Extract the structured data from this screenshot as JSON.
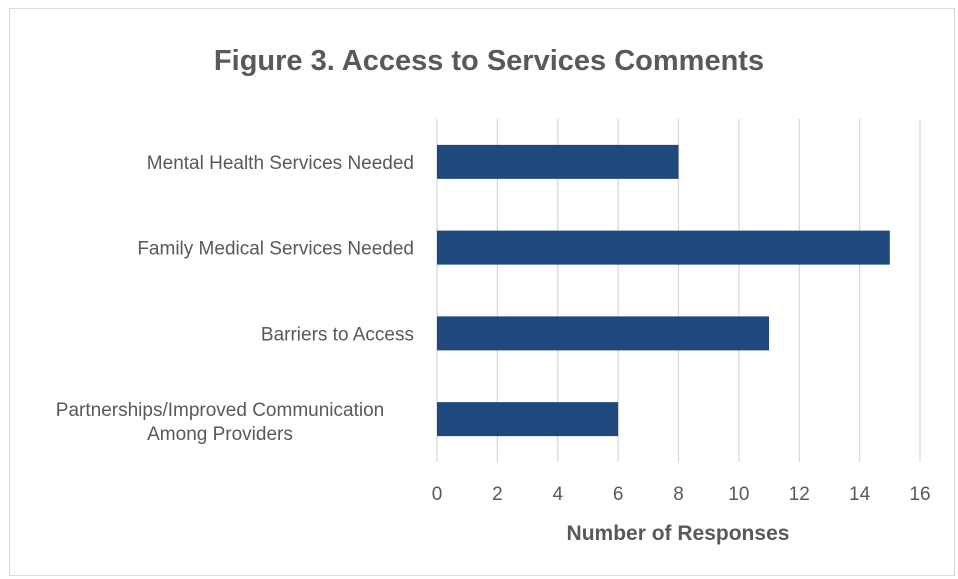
{
  "chart_data": {
    "type": "bar",
    "orientation": "horizontal",
    "title": "Figure 3. Access to Services Comments",
    "xlabel": "Number of Responses",
    "ylabel": "",
    "categories": [
      "Mental Health Services Needed",
      "Family Medical Services Needed",
      "Barriers to Access",
      "Partnerships/Improved Communication Among Providers"
    ],
    "values": [
      8,
      15,
      11,
      6
    ],
    "xlim": [
      0,
      16
    ],
    "xticks": [
      0,
      2,
      4,
      6,
      8,
      10,
      12,
      14,
      16
    ],
    "grid": true,
    "legend": "none",
    "bar_color": "#1f497d"
  }
}
